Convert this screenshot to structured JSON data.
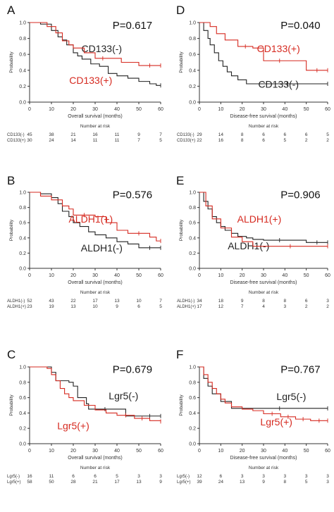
{
  "chart_data": [
    {
      "type": "line",
      "panel": "A",
      "xlabel": "Overall survival (months)",
      "ylabel": "Probability",
      "xlim": [
        0,
        60
      ],
      "ylim": [
        0,
        1.0
      ],
      "xticks": [
        0,
        10,
        20,
        30,
        40,
        50,
        60
      ],
      "yticks": [
        0,
        0.2,
        0.4,
        0.6,
        0.8,
        1.0
      ],
      "pvalue": "P=0.617",
      "series": [
        {
          "name": "CD133(-)",
          "color": "#222222",
          "x": [
            0,
            5,
            10,
            13,
            15,
            17,
            20,
            22,
            24,
            28,
            32,
            36,
            40,
            45,
            50,
            55,
            58,
            60
          ],
          "y": [
            1.0,
            0.98,
            0.9,
            0.82,
            0.78,
            0.72,
            0.62,
            0.58,
            0.54,
            0.48,
            0.45,
            0.36,
            0.33,
            0.3,
            0.26,
            0.23,
            0.21,
            0.21
          ]
        },
        {
          "name": "CD133(+)",
          "color": "#d62a20",
          "x": [
            0,
            8,
            12,
            15,
            18,
            20,
            25,
            30,
            37,
            42,
            48,
            50,
            60
          ],
          "y": [
            1.0,
            0.95,
            0.87,
            0.77,
            0.72,
            0.68,
            0.62,
            0.55,
            0.55,
            0.5,
            0.5,
            0.46,
            0.46
          ]
        }
      ],
      "risk_table": {
        "label": "Number at risk",
        "rows": [
          {
            "name": "CD133(-)",
            "values": [
              "45",
              "38",
              "21",
              "16",
              "11",
              "9",
              "7"
            ]
          },
          {
            "name": "CD133(+)",
            "values": [
              "30",
              "24",
              "14",
              "11",
              "11",
              "7",
              "5"
            ]
          }
        ]
      }
    },
    {
      "type": "line",
      "panel": "D",
      "xlabel": "Disease-free survival (months)",
      "ylabel": "Probability",
      "xlim": [
        0,
        60
      ],
      "ylim": [
        0,
        1.0
      ],
      "xticks": [
        0,
        10,
        20,
        30,
        40,
        50,
        60
      ],
      "yticks": [
        0,
        0.2,
        0.4,
        0.6,
        0.8,
        1.0
      ],
      "pvalue": "P=0.040",
      "series": [
        {
          "name": "CD133(-)",
          "color": "#222222",
          "x": [
            0,
            2,
            4,
            5,
            7,
            9,
            11,
            13,
            15,
            18,
            22,
            60
          ],
          "y": [
            1.0,
            0.9,
            0.8,
            0.72,
            0.62,
            0.52,
            0.45,
            0.38,
            0.33,
            0.28,
            0.23,
            0.23
          ]
        },
        {
          "name": "CD133(+)",
          "color": "#d62a20",
          "x": [
            0,
            5,
            8,
            12,
            18,
            25,
            30,
            45,
            50,
            60
          ],
          "y": [
            1.0,
            0.95,
            0.86,
            0.78,
            0.7,
            0.68,
            0.52,
            0.52,
            0.4,
            0.4
          ]
        }
      ],
      "risk_table": {
        "label": "Number at risk",
        "rows": [
          {
            "name": "CD133(-)",
            "values": [
              "29",
              "14",
              "8",
              "6",
              "6",
              "6",
              "5"
            ]
          },
          {
            "name": "CD133(+)",
            "values": [
              "22",
              "16",
              "8",
              "6",
              "5",
              "2",
              "2"
            ]
          }
        ]
      }
    },
    {
      "type": "line",
      "panel": "B",
      "xlabel": "Overall survival (months)",
      "ylabel": "Probability",
      "xlim": [
        0,
        60
      ],
      "ylim": [
        0,
        1.0
      ],
      "xticks": [
        0,
        10,
        20,
        30,
        40,
        50,
        60
      ],
      "yticks": [
        0,
        0.2,
        0.4,
        0.6,
        0.8,
        1.0
      ],
      "pvalue": "P=0.576",
      "series": [
        {
          "name": "ALDH1(-)",
          "color": "#222222",
          "x": [
            0,
            5,
            10,
            13,
            15,
            18,
            20,
            23,
            27,
            30,
            35,
            40,
            45,
            50,
            60
          ],
          "y": [
            1.0,
            0.98,
            0.93,
            0.85,
            0.75,
            0.68,
            0.6,
            0.55,
            0.48,
            0.44,
            0.4,
            0.35,
            0.32,
            0.27,
            0.27
          ]
        },
        {
          "name": "ALDH1(+)",
          "color": "#d62a20",
          "x": [
            0,
            5,
            10,
            15,
            18,
            20,
            30,
            35,
            40,
            45,
            55,
            58,
            60
          ],
          "y": [
            1.0,
            0.95,
            0.9,
            0.82,
            0.78,
            0.7,
            0.68,
            0.6,
            0.5,
            0.46,
            0.41,
            0.36,
            0.36
          ]
        }
      ],
      "risk_table": {
        "label": "Number at risk",
        "rows": [
          {
            "name": "ALDH1(-)",
            "values": [
              "52",
              "43",
              "22",
              "17",
              "13",
              "10",
              "7"
            ]
          },
          {
            "name": "ALDH1(+)",
            "values": [
              "23",
              "19",
              "13",
              "10",
              "9",
              "6",
              "5"
            ]
          }
        ]
      }
    },
    {
      "type": "line",
      "panel": "E",
      "xlabel": "Disease-free survival (months)",
      "ylabel": "Probability",
      "xlim": [
        0,
        60
      ],
      "ylim": [
        0,
        1.0
      ],
      "xticks": [
        0,
        10,
        20,
        30,
        40,
        50,
        60
      ],
      "yticks": [
        0,
        0.2,
        0.4,
        0.6,
        0.8,
        1.0
      ],
      "pvalue": "P=0.906",
      "series": [
        {
          "name": "ALDH1(-)",
          "color": "#222222",
          "x": [
            0,
            2,
            4,
            6,
            8,
            10,
            12,
            15,
            18,
            22,
            25,
            30,
            45,
            50,
            60
          ],
          "y": [
            1.0,
            0.88,
            0.78,
            0.68,
            0.6,
            0.55,
            0.5,
            0.46,
            0.42,
            0.4,
            0.38,
            0.37,
            0.37,
            0.34,
            0.34
          ]
        },
        {
          "name": "ALDH1(+)",
          "color": "#d62a20",
          "x": [
            0,
            3,
            6,
            10,
            15,
            20,
            25,
            60
          ],
          "y": [
            1.0,
            0.82,
            0.65,
            0.53,
            0.41,
            0.35,
            0.29,
            0.29
          ]
        }
      ],
      "risk_table": {
        "label": "Number at risk",
        "rows": [
          {
            "name": "ALDH1(-)",
            "values": [
              "34",
              "18",
              "9",
              "8",
              "8",
              "6",
              "3"
            ]
          },
          {
            "name": "ALDH1(+)",
            "values": [
              "17",
              "12",
              "7",
              "4",
              "3",
              "2",
              "2"
            ]
          }
        ]
      }
    },
    {
      "type": "line",
      "panel": "C",
      "xlabel": "Overall survival (months)",
      "ylabel": "Probability",
      "xlim": [
        0,
        60
      ],
      "ylim": [
        0,
        1.0
      ],
      "xticks": [
        0,
        10,
        20,
        30,
        40,
        50,
        60
      ],
      "yticks": [
        0,
        0.2,
        0.4,
        0.6,
        0.8,
        1.0
      ],
      "pvalue": "P=0.679",
      "series": [
        {
          "name": "Lgr5(-)",
          "color": "#222222",
          "x": [
            0,
            10,
            12,
            18,
            20,
            22,
            26,
            27,
            42,
            44,
            50,
            60
          ],
          "y": [
            1.0,
            0.93,
            0.82,
            0.8,
            0.75,
            0.6,
            0.52,
            0.45,
            0.45,
            0.36,
            0.36,
            0.36
          ]
        },
        {
          "name": "Lgr5(+)",
          "color": "#d62a20",
          "x": [
            0,
            8,
            10,
            12,
            14,
            16,
            18,
            20,
            25,
            30,
            35,
            40,
            48,
            55,
            60
          ],
          "y": [
            1.0,
            0.98,
            0.9,
            0.82,
            0.72,
            0.65,
            0.6,
            0.56,
            0.5,
            0.44,
            0.4,
            0.37,
            0.33,
            0.3,
            0.29
          ]
        }
      ],
      "risk_table": {
        "label": "Number at risk",
        "rows": [
          {
            "name": "Lgr5(-)",
            "values": [
              "16",
              "11",
              "6",
              "6",
              "5",
              "3",
              "3"
            ]
          },
          {
            "name": "Lgr5(+)",
            "values": [
              "58",
              "50",
              "28",
              "21",
              "17",
              "13",
              "9"
            ]
          }
        ]
      }
    },
    {
      "type": "line",
      "panel": "F",
      "xlabel": "Disease-free survival (months)",
      "ylabel": "Probability",
      "xlim": [
        0,
        60
      ],
      "ylim": [
        0,
        1.0
      ],
      "xticks": [
        0,
        10,
        20,
        30,
        40,
        50,
        60
      ],
      "yticks": [
        0,
        0.2,
        0.4,
        0.6,
        0.8,
        1.0
      ],
      "pvalue": "P=0.767",
      "series": [
        {
          "name": "Lgr5(-)",
          "color": "#222222",
          "x": [
            0,
            2,
            4,
            6,
            10,
            15,
            60
          ],
          "y": [
            1.0,
            0.85,
            0.75,
            0.65,
            0.55,
            0.46,
            0.46
          ]
        },
        {
          "name": "Lgr5(+)",
          "color": "#d62a20",
          "x": [
            0,
            2,
            4,
            6,
            8,
            10,
            12,
            15,
            20,
            25,
            30,
            38,
            45,
            52,
            60
          ],
          "y": [
            1.0,
            0.9,
            0.8,
            0.72,
            0.65,
            0.58,
            0.53,
            0.48,
            0.45,
            0.43,
            0.39,
            0.35,
            0.32,
            0.3,
            0.3
          ]
        }
      ],
      "risk_table": {
        "label": "Number at risk",
        "rows": [
          {
            "name": "Lgr5(-)",
            "values": [
              "12",
              "6",
              "3",
              "3",
              "3",
              "3",
              "3"
            ]
          },
          {
            "name": "Lgr5(+)",
            "values": [
              "39",
              "24",
              "13",
              "9",
              "8",
              "5",
              "3"
            ]
          }
        ]
      }
    }
  ]
}
